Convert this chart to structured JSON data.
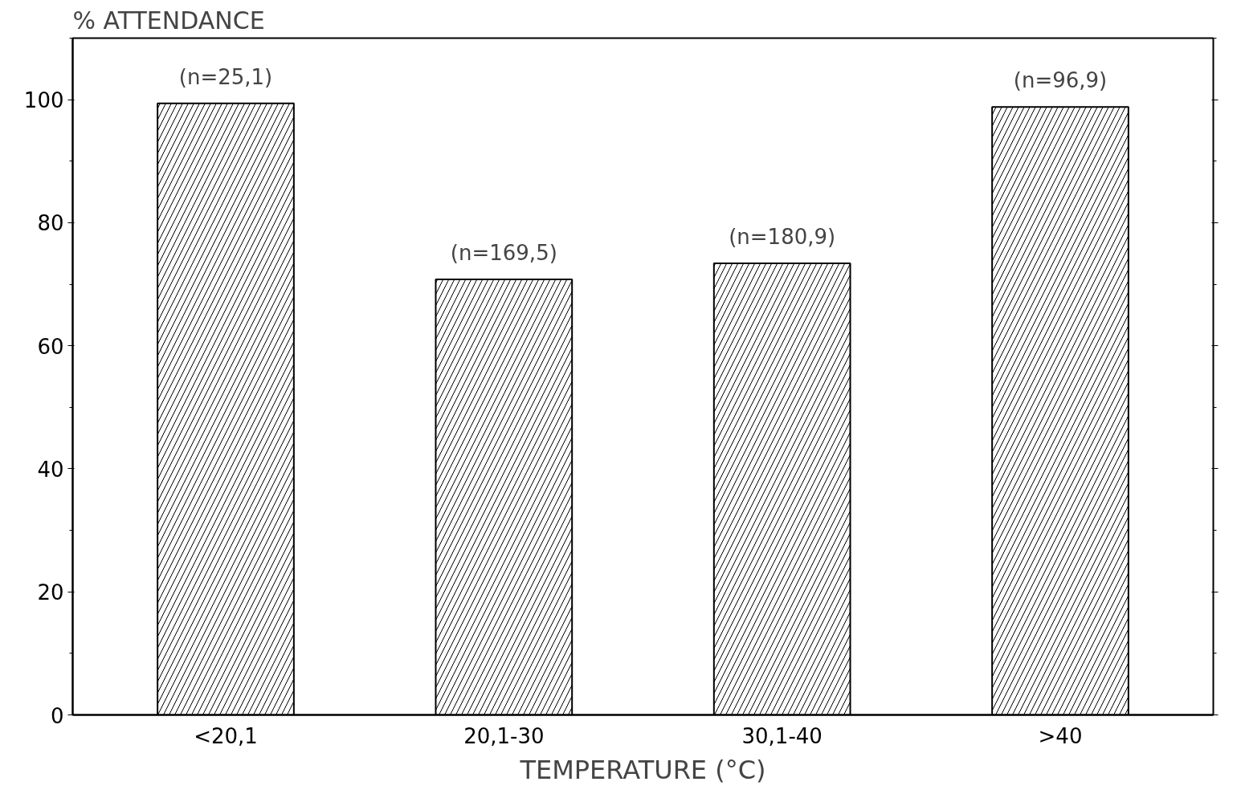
{
  "chart_data": {
    "type": "bar",
    "xlabel": "TEMPERATURE (°C)",
    "ylabel": "% ATTENDANCE",
    "categories": [
      "<20,1",
      "20,1-30",
      "30,1-40",
      ">40"
    ],
    "values": [
      99.4,
      70.8,
      73.4,
      98.8
    ],
    "color": "#ffffff",
    "ylim": [
      0,
      110
    ],
    "yticks": [
      0,
      20,
      40,
      60,
      80,
      100
    ],
    "grid": false,
    "annotations": [
      {
        "text": "(n=25,1)",
        "x": "<20,1",
        "y": 99.4
      },
      {
        "text": "(n=169,5)",
        "x": "20,1-30",
        "y": 70.8
      },
      {
        "text": "(n=180,9)",
        "x": "30,1-40",
        "y": 73.4
      },
      {
        "text": "(n=96,9)",
        "x": ">40",
        "y": 98.8
      }
    ]
  }
}
